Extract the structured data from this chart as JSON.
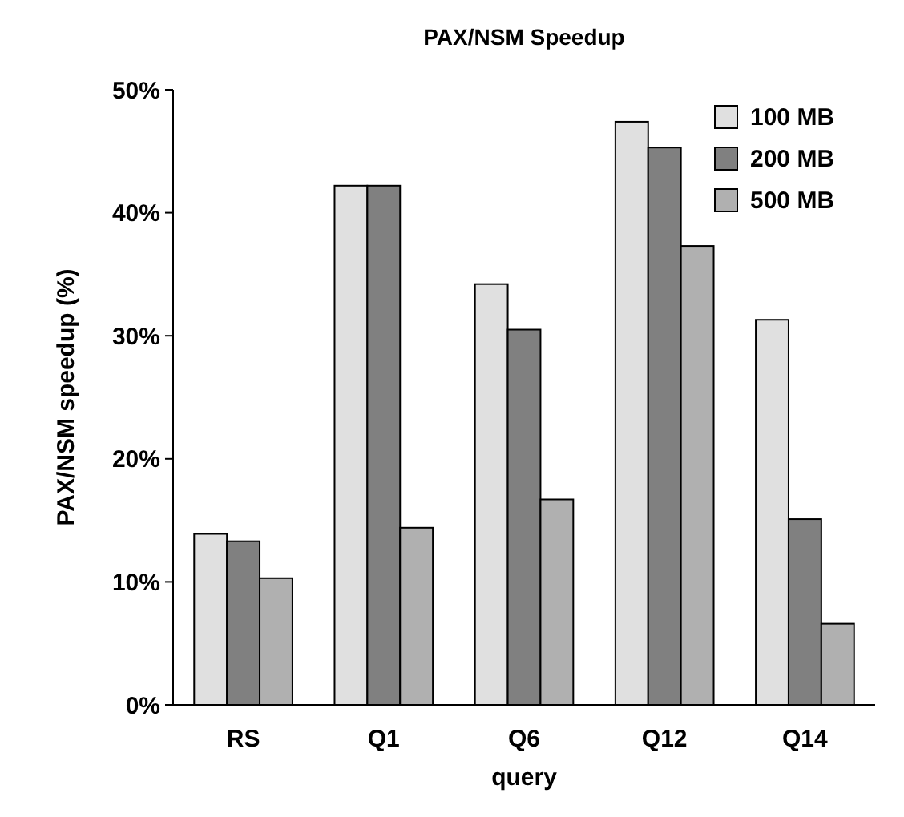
{
  "chart_data": {
    "type": "bar",
    "title": "PAX/NSM Speedup",
    "xlabel": "query",
    "ylabel": "PAX/NSM speedup (%)",
    "categories": [
      "RS",
      "Q1",
      "Q6",
      "Q12",
      "Q14"
    ],
    "series": [
      {
        "name": "100 MB",
        "color": "#e0e0e0",
        "values": [
          13.9,
          42.2,
          34.2,
          47.4,
          31.3
        ]
      },
      {
        "name": "200 MB",
        "color": "#808080",
        "values": [
          13.3,
          42.2,
          30.5,
          45.3,
          15.1
        ]
      },
      {
        "name": "500 MB",
        "color": "#b0b0b0",
        "values": [
          10.3,
          14.4,
          16.7,
          37.3,
          6.6
        ]
      }
    ],
    "ylim": [
      0,
      50
    ],
    "yticks": [
      {
        "value": 0,
        "label": "0%"
      },
      {
        "value": 10,
        "label": "10%"
      },
      {
        "value": 20,
        "label": "20%"
      },
      {
        "value": 30,
        "label": "30%"
      },
      {
        "value": 40,
        "label": "40%"
      },
      {
        "value": 50,
        "label": "50%"
      }
    ],
    "grid": false,
    "legend": "top right"
  }
}
